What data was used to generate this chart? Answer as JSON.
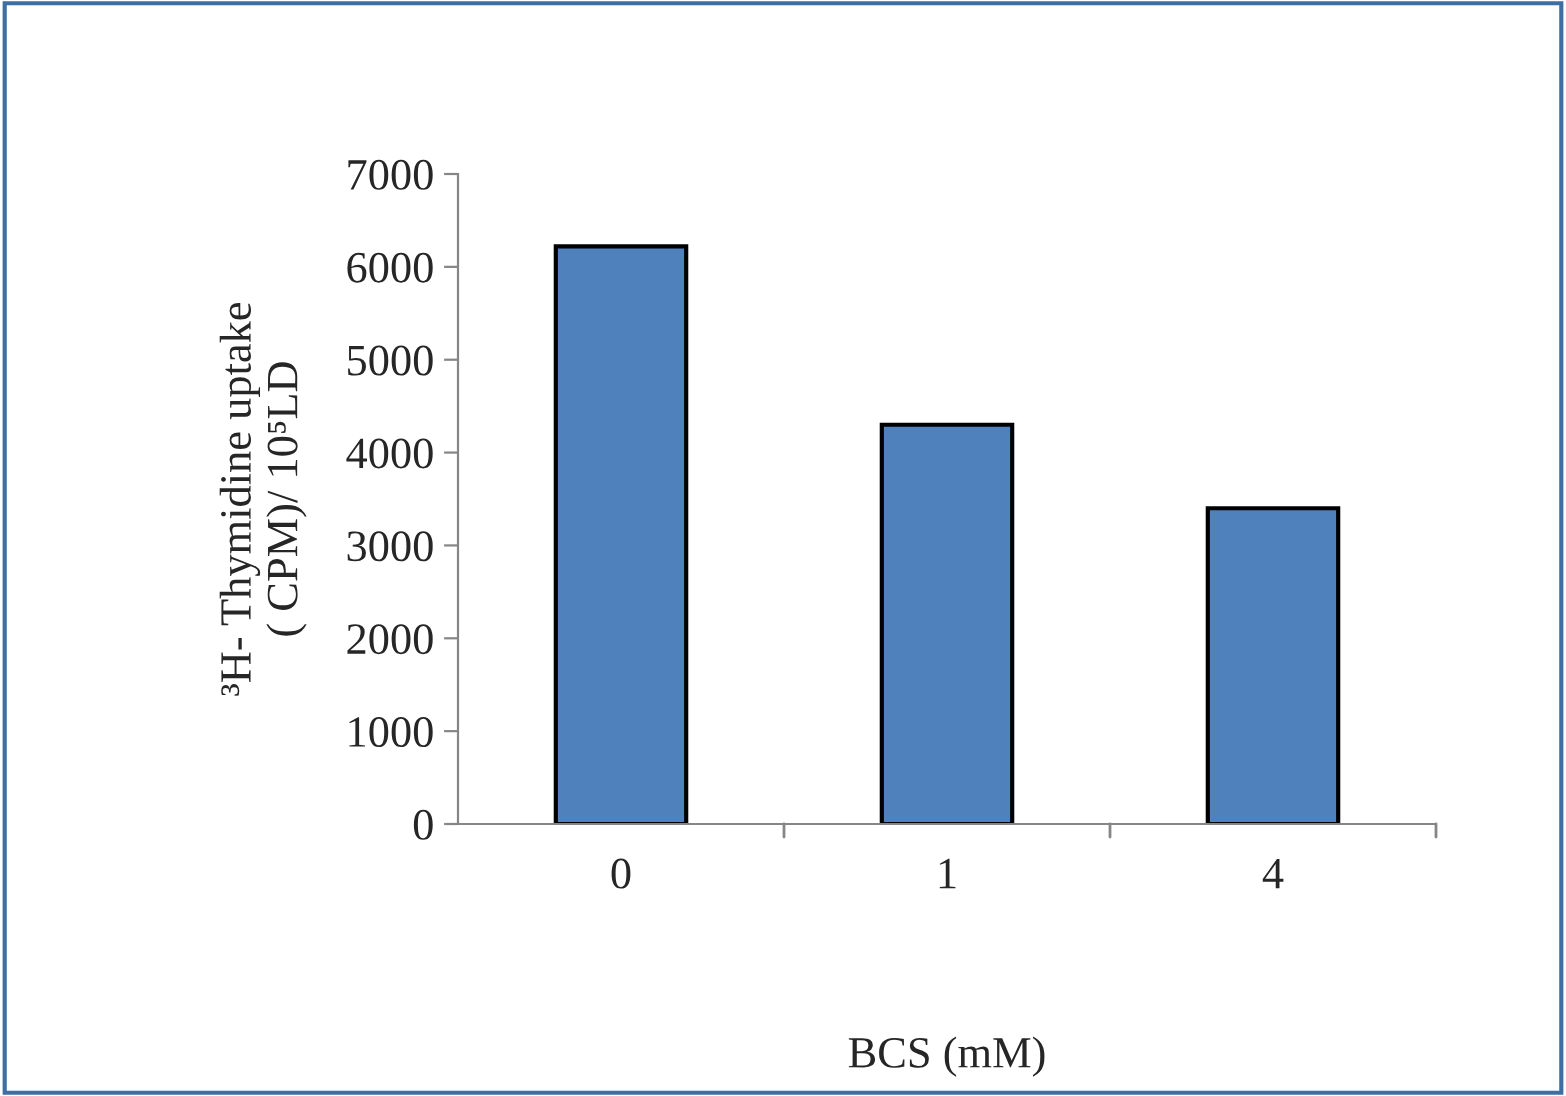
{
  "chart_data": {
    "type": "bar",
    "xlabel": "BCS (mM)",
    "ylabel": "³H- Thymidine uptake\n( CPM)/ 10⁵LD",
    "categories": [
      "0",
      "1",
      "4"
    ],
    "values": [
      6220,
      4300,
      3400
    ],
    "color": "#4f81bd",
    "ylim": [
      0,
      7000
    ],
    "yticks": [
      0,
      1000,
      2000,
      3000,
      4000,
      5000,
      6000,
      7000
    ],
    "grid": false,
    "legend": false
  }
}
